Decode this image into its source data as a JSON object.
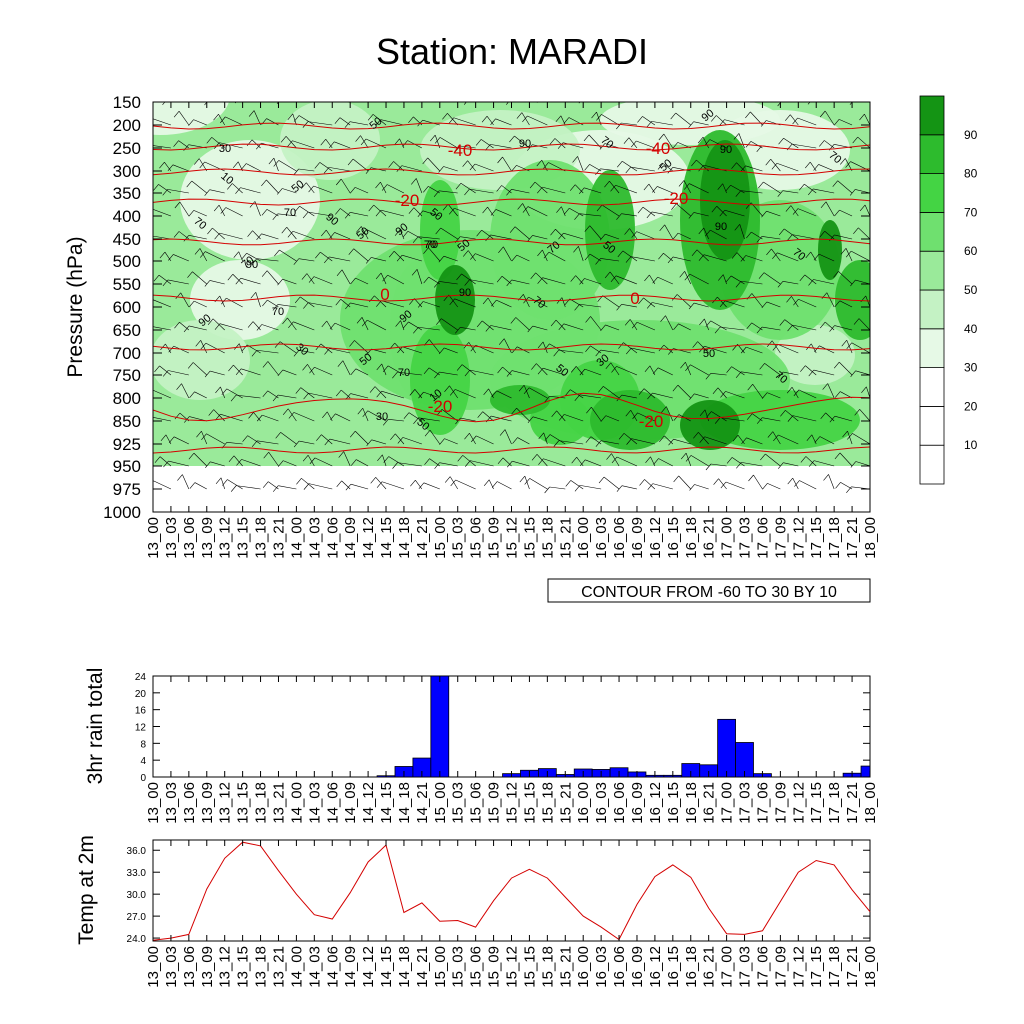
{
  "title": "Station: MARADI",
  "colors": {
    "levels": [
      "#ffffff",
      "#ffffff",
      "#ffffff",
      "#e6f9e6",
      "#c4f2c4",
      "#9aea9a",
      "#6fe06f",
      "#44d444",
      "#2dbb2d",
      "#149414"
    ],
    "temp_contour": "#d40000",
    "rain_bar": "#0000ff"
  },
  "chart_data": [
    {
      "type": "heatmap",
      "xlabel": "",
      "ylabel": "Pressure (hPa)",
      "yticks": [
        150,
        200,
        250,
        300,
        350,
        400,
        450,
        500,
        550,
        600,
        650,
        700,
        750,
        800,
        850,
        925,
        950,
        975,
        1000
      ],
      "xticks": [
        "13_00",
        "13_03",
        "13_06",
        "13_09",
        "13_12",
        "13_15",
        "13_18",
        "13_21",
        "14_00",
        "14_03",
        "14_06",
        "14_09",
        "14_12",
        "14_15",
        "14_18",
        "14_21",
        "15_00",
        "15_03",
        "15_06",
        "15_09",
        "15_12",
        "15_15",
        "15_18",
        "15_21",
        "16_00",
        "16_03",
        "16_06",
        "16_09",
        "16_12",
        "16_15",
        "16_18",
        "16_21",
        "17_00",
        "17_03",
        "17_06",
        "17_09",
        "17_12",
        "17_15",
        "17_18",
        "17_21",
        "18_00"
      ],
      "colorbar_labels": [
        "10",
        "20",
        "30",
        "40",
        "50",
        "60",
        "70",
        "80",
        "90"
      ],
      "contour_note": "CONTOUR FROM -60 TO 30 BY 10",
      "humidity_labels": [
        "50",
        "30",
        "10",
        "50",
        "70",
        "50",
        "50",
        "90",
        "70",
        "50",
        "90",
        "70",
        "50",
        "70",
        "90",
        "90",
        "70",
        "50",
        "70",
        "90",
        "70",
        "90",
        "90",
        "70",
        "90",
        "70",
        "30",
        "50",
        "70",
        "50",
        "30",
        "50",
        "70",
        "10",
        "30",
        "50",
        "70",
        "90",
        "70",
        "90"
      ],
      "temperature_labels": [
        "-40",
        "-40",
        "-20",
        "-20",
        "0",
        "0",
        "-20",
        "-20"
      ],
      "temperature_levels": [
        -60,
        -50,
        -40,
        -30,
        -20,
        -10,
        0,
        10,
        20,
        30
      ]
    },
    {
      "type": "bar",
      "ylabel": "3hr rain total",
      "yticks": [
        "0",
        "4",
        "8",
        "12",
        "16",
        "20",
        "24"
      ],
      "ylim": [
        0,
        24
      ],
      "categories": [
        "13_00",
        "13_03",
        "13_06",
        "13_09",
        "13_12",
        "13_15",
        "13_18",
        "13_21",
        "14_00",
        "14_03",
        "14_06",
        "14_09",
        "14_12",
        "14_15",
        "14_18",
        "14_21",
        "15_00",
        "15_03",
        "15_06",
        "15_09",
        "15_12",
        "15_15",
        "15_18",
        "15_21",
        "16_00",
        "16_03",
        "16_06",
        "16_09",
        "16_12",
        "16_15",
        "16_18",
        "16_21",
        "17_00",
        "17_03",
        "17_06",
        "17_09",
        "17_12",
        "17_15",
        "17_18",
        "17_21",
        "18_00"
      ],
      "values": [
        0,
        0,
        0,
        0,
        0,
        0,
        0,
        0,
        0,
        0,
        0,
        0,
        0,
        0.3,
        2.5,
        4.5,
        24,
        0,
        0,
        0,
        0.8,
        1.6,
        2.0,
        0.6,
        1.9,
        1.8,
        2.2,
        1.2,
        0.4,
        0.4,
        3.2,
        2.9,
        13.7,
        8.2,
        0.8,
        0,
        0,
        0,
        0,
        0.9,
        2.6
      ]
    },
    {
      "type": "line",
      "ylabel": "Temp at 2m",
      "yticks": [
        "24.0",
        "27.0",
        "30.0",
        "33.0",
        "36.0"
      ],
      "ylim": [
        23.6,
        37.4
      ],
      "categories": [
        "13_00",
        "13_03",
        "13_06",
        "13_09",
        "13_12",
        "13_15",
        "13_18",
        "13_21",
        "14_00",
        "14_03",
        "14_06",
        "14_09",
        "14_12",
        "14_15",
        "14_18",
        "14_21",
        "15_00",
        "15_03",
        "15_06",
        "15_09",
        "15_12",
        "15_15",
        "15_18",
        "15_21",
        "16_00",
        "16_03",
        "16_06",
        "16_09",
        "16_12",
        "16_15",
        "16_18",
        "16_21",
        "17_00",
        "17_03",
        "17_06",
        "17_09",
        "17_12",
        "17_15",
        "17_18",
        "17_21",
        "18_00"
      ],
      "values": [
        23.7,
        24.0,
        24.5,
        30.7,
        34.9,
        37.1,
        36.6,
        33.2,
        30.0,
        27.2,
        26.6,
        30.2,
        34.4,
        36.7,
        27.5,
        28.8,
        26.3,
        26.4,
        25.5,
        29.1,
        32.2,
        33.4,
        32.2,
        29.6,
        27.0,
        25.5,
        23.8,
        28.6,
        32.4,
        34.0,
        32.3,
        28.1,
        24.6,
        24.5,
        25.0,
        29.0,
        33.0,
        34.6,
        34.0,
        30.6,
        27.6
      ]
    }
  ]
}
